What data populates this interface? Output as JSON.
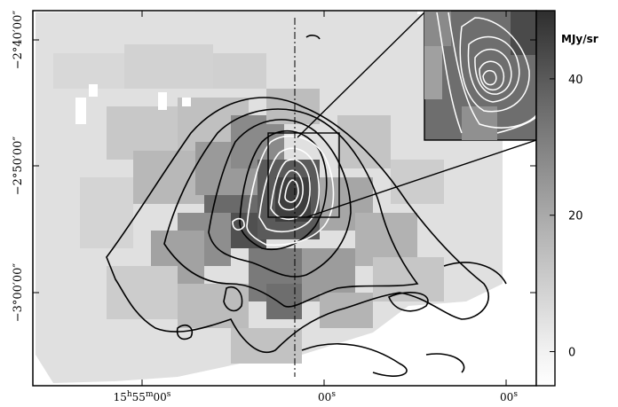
{
  "chart_data": {
    "type": "heatmap",
    "title": "",
    "xlabel": "",
    "ylabel": "",
    "grid": false,
    "x_ticks": [
      {
        "label": "15h55m00s",
        "h": "15",
        "m": "55",
        "s": "00"
      },
      {
        "label": "00s",
        "s": "00"
      },
      {
        "label": "00s",
        "s": "00"
      }
    ],
    "y_ticks": [
      {
        "label": "−2°40′00″"
      },
      {
        "label": "−2°50′00″"
      },
      {
        "label": "−3°00′00″"
      }
    ],
    "colorbar": {
      "unit": "MJy/sr",
      "ticks": [
        0,
        20,
        40
      ],
      "range": [
        -5,
        50
      ],
      "colors": [
        "#ffffff",
        "#2e2e2e"
      ]
    },
    "inset": {
      "description_visible": false
    },
    "colors": {
      "black_contours": "#000000",
      "white_contours": "#ffffff",
      "background": "#ffffff"
    }
  }
}
